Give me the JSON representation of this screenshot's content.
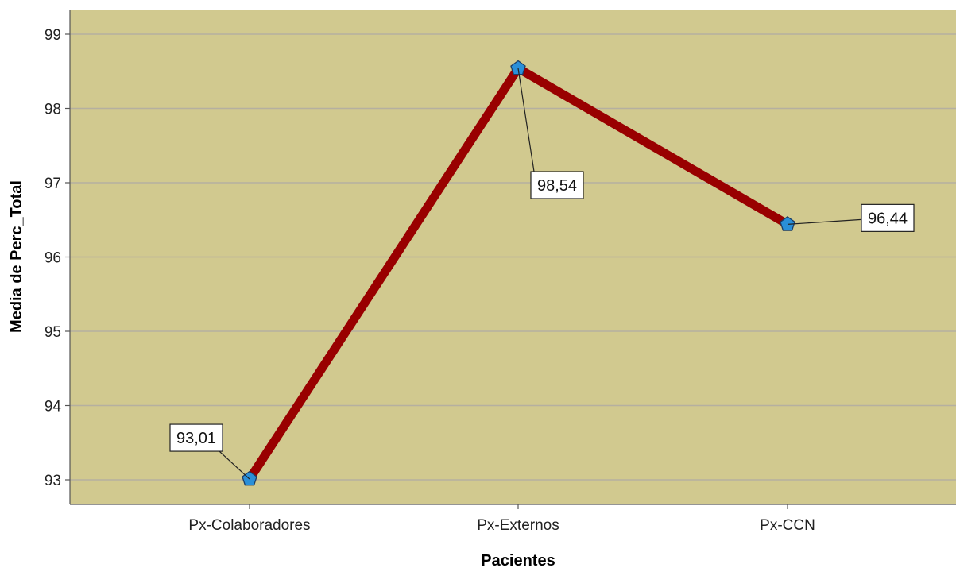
{
  "chart_data": {
    "type": "line",
    "categories": [
      "Px-Colaboradores",
      "Px-Externos",
      "Px-CCN"
    ],
    "values": [
      93.01,
      98.54,
      96.44
    ],
    "data_labels": [
      "93,01",
      "98,54",
      "96,44"
    ],
    "xlabel": "Pacientes",
    "ylabel": "Media de Perc_Total",
    "ylim": [
      92.85,
      99.35
    ],
    "yticks": [
      93,
      94,
      95,
      96,
      97,
      98,
      99
    ],
    "ytick_labels": [
      "93",
      "94",
      "95",
      "96",
      "97",
      "98",
      "99"
    ],
    "grid": true,
    "legend": "none",
    "colors": {
      "plot_background": "#d1c98f",
      "line": "#990000",
      "marker": "#2a8fd8",
      "gridline": "#b5b0a0"
    }
  }
}
